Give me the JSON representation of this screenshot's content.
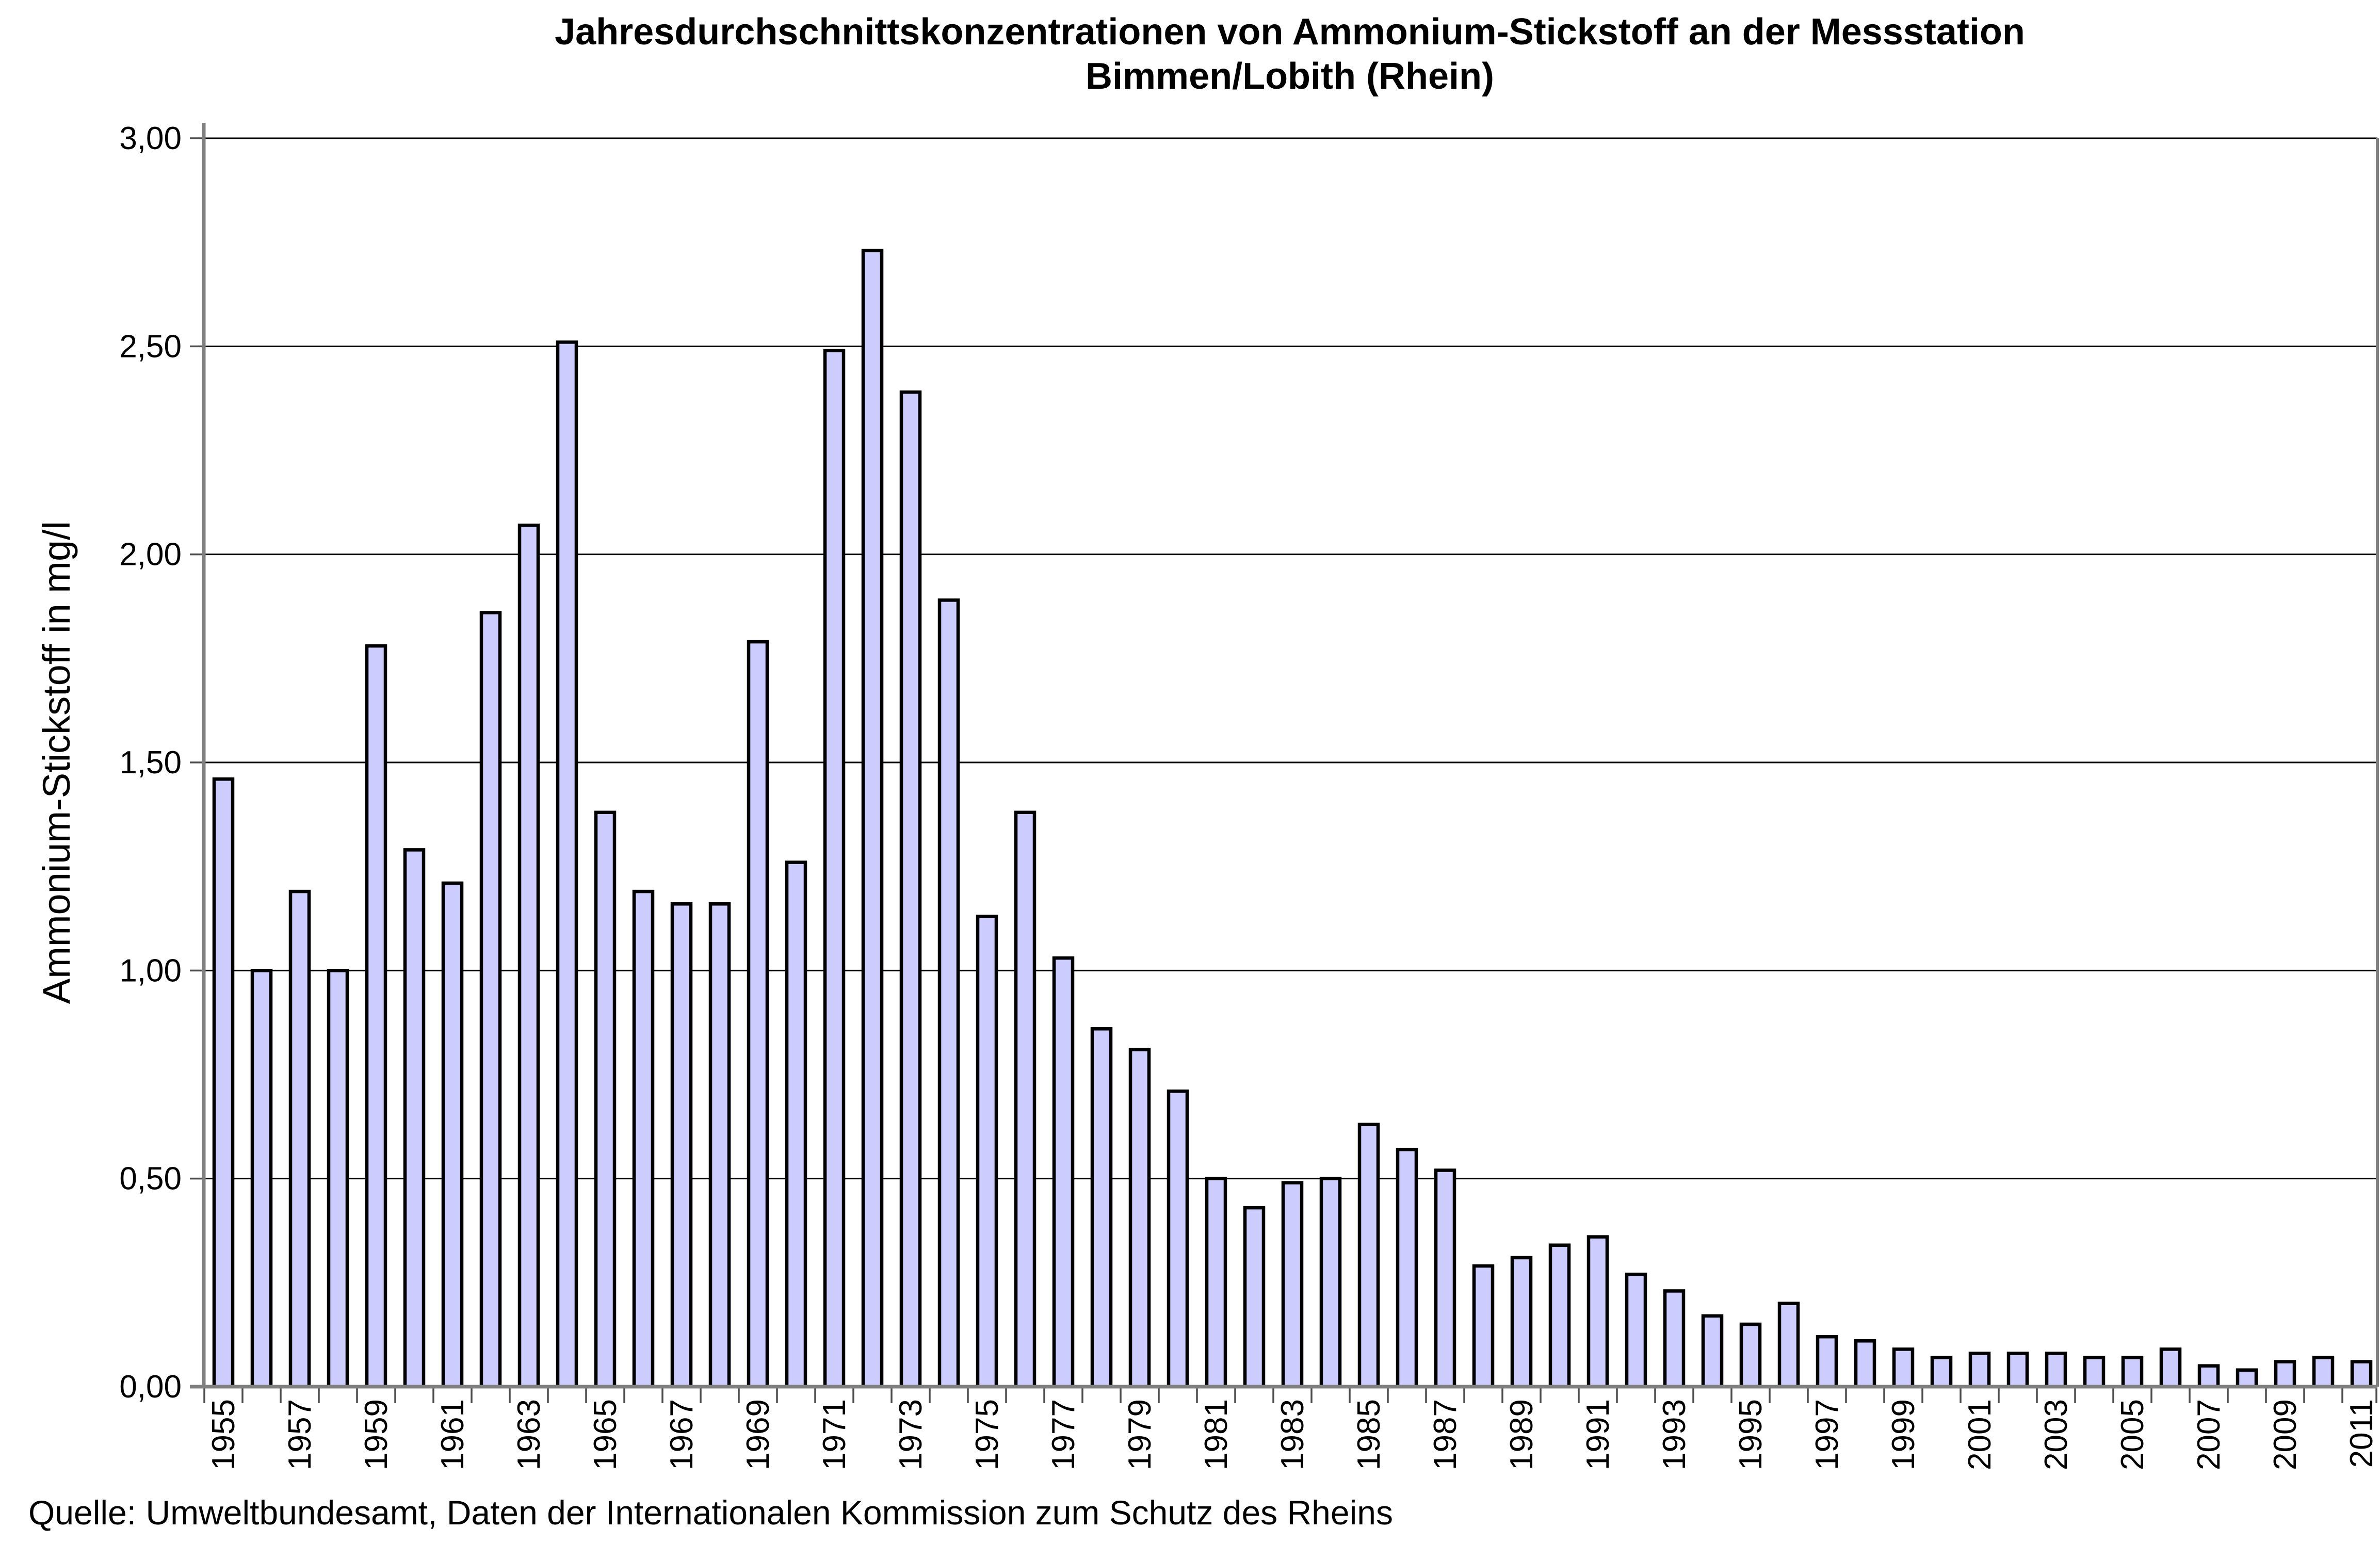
{
  "title": {
    "line1": "Jahresdurchschnittskonzentrationen von Ammonium-Stickstoff an der Messstation",
    "line2": "Bimmen/Lobith (Rhein)"
  },
  "source": "Quelle: Umweltbundesamt, Daten der Internationalen Kommission zum Schutz des Rheins",
  "axes": {
    "y": {
      "title": "Ammonium-Stickstoff in mg/l",
      "tick_labels": [
        "0,00",
        "0,50",
        "1,00",
        "1,50",
        "2,00",
        "2,50",
        "3,00"
      ],
      "min": 0,
      "max": 3,
      "step": 0.5
    },
    "x": {
      "tick_labels": [
        "1955",
        "1957",
        "1959",
        "1961",
        "1963",
        "1965",
        "1967",
        "1969",
        "1971",
        "1973",
        "1975",
        "1977",
        "1979",
        "1981",
        "1983",
        "1985",
        "1987",
        "1989",
        "1991",
        "1993",
        "1995",
        "1997",
        "1999",
        "2001",
        "2003",
        "2005",
        "2007",
        "2009",
        "2011"
      ]
    }
  },
  "colors": {
    "bar_fill": "#CCCCFF",
    "bar_border": "#000000",
    "gridline": "#000000",
    "axis": "#808080",
    "tick": "#4d4d4d",
    "background": "#ffffff"
  },
  "chart_data": {
    "type": "bar",
    "title": "Jahresdurchschnittskonzentrationen von Ammonium-Stickstoff an der Messstation Bimmen/Lobith (Rhein)",
    "xlabel": "",
    "ylabel": "Ammonium-Stickstoff in mg/l",
    "ylim": [
      0,
      3
    ],
    "grid": true,
    "legend": "none",
    "categories": [
      1955,
      1956,
      1957,
      1958,
      1959,
      1960,
      1961,
      1962,
      1963,
      1964,
      1965,
      1966,
      1967,
      1968,
      1969,
      1970,
      1971,
      1972,
      1973,
      1974,
      1975,
      1976,
      1977,
      1978,
      1979,
      1980,
      1981,
      1982,
      1983,
      1984,
      1985,
      1986,
      1987,
      1988,
      1989,
      1990,
      1991,
      1992,
      1993,
      1994,
      1995,
      1996,
      1997,
      1998,
      1999,
      2000,
      2001,
      2002,
      2003,
      2004,
      2005,
      2006,
      2007,
      2008,
      2009,
      2010,
      2011
    ],
    "values": [
      1.46,
      1.0,
      1.19,
      1.0,
      1.78,
      1.29,
      1.21,
      1.86,
      2.07,
      2.51,
      1.38,
      1.19,
      1.16,
      1.16,
      1.79,
      1.26,
      2.49,
      2.73,
      2.39,
      1.89,
      1.13,
      1.38,
      1.03,
      0.86,
      0.81,
      0.71,
      0.5,
      0.43,
      0.49,
      0.5,
      0.63,
      0.57,
      0.52,
      0.29,
      0.31,
      0.34,
      0.36,
      0.27,
      0.23,
      0.17,
      0.15,
      0.2,
      0.12,
      0.11,
      0.09,
      0.07,
      0.08,
      0.08,
      0.08,
      0.07,
      0.07,
      0.09,
      0.05,
      0.04,
      0.06,
      0.07,
      0.06
    ]
  }
}
